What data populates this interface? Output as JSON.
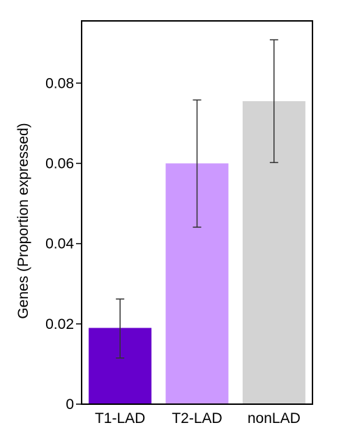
{
  "chart_data": {
    "type": "bar",
    "title": "",
    "xlabel": "",
    "ylabel": "Genes (Proportion expressed)",
    "ylim": [
      0,
      0.0955
    ],
    "yticks": [
      0,
      0.02,
      0.04,
      0.06,
      0.08
    ],
    "ytick_labels": [
      "0",
      "0.02",
      "0.04",
      "0.06",
      "0.08"
    ],
    "categories": [
      "T1-LAD",
      "T2-LAD",
      "nonLAD"
    ],
    "values": [
      0.019,
      0.06,
      0.0755
    ],
    "error_low": [
      0.0115,
      0.0441,
      0.0602
    ],
    "error_high": [
      0.0262,
      0.0758,
      0.0908
    ],
    "colors": [
      "#6600cc",
      "#cc99ff",
      "#d3d3d3"
    ],
    "grid": false,
    "legend": "none"
  }
}
